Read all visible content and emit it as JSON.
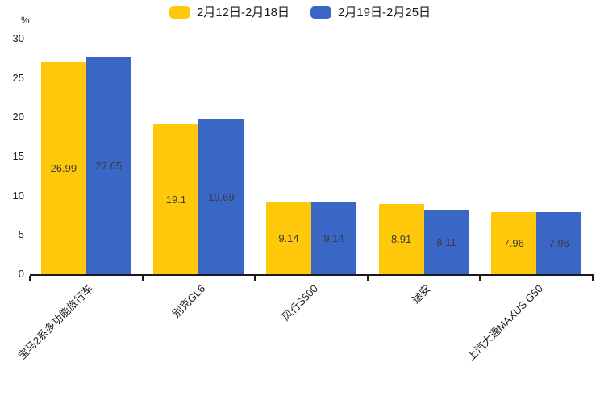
{
  "chart_data": {
    "type": "bar",
    "categories": [
      "宝马2系多功能旅行车",
      "别克GL6",
      "风行S500",
      "途安",
      "上汽大通MAXUS G50"
    ],
    "series": [
      {
        "name": "2月12日-2月18日",
        "color": "#FFC80A",
        "values": [
          26.99,
          19.1,
          9.14,
          8.91,
          7.96
        ]
      },
      {
        "name": "2月19日-2月25日",
        "color": "#3A66C6",
        "values": [
          27.65,
          19.69,
          9.14,
          8.11,
          7.96
        ]
      }
    ],
    "title": "",
    "xlabel": "",
    "ylabel": "%",
    "ylim": [
      0,
      30
    ],
    "yticks": [
      0,
      5,
      10,
      15,
      20,
      25,
      30
    ],
    "legend_position": "top",
    "grid": false,
    "value_labels": "inside-center",
    "x_label_rotation_deg": -45,
    "axis_color": "#1a1a1a",
    "value_label_color": "#3c3c3c"
  }
}
